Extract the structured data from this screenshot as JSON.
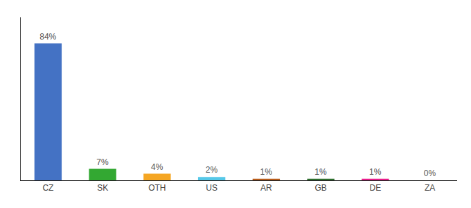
{
  "chart_data": {
    "type": "bar",
    "categories": [
      "CZ",
      "SK",
      "OTH",
      "US",
      "AR",
      "GB",
      "DE",
      "ZA"
    ],
    "values": [
      84,
      7,
      4,
      2,
      1,
      1,
      1,
      0
    ],
    "value_labels": [
      "84%",
      "7%",
      "4%",
      "2%",
      "1%",
      "1%",
      "1%",
      "0%"
    ],
    "data_labels": true,
    "colors": [
      "#4472c4",
      "#33a832",
      "#f5a623",
      "#56c8e8",
      "#b85c1a",
      "#2d6e2d",
      "#e91e8c",
      "#888888"
    ],
    "ylim": [
      0,
      100
    ],
    "grid": false,
    "tick_labels": "x"
  }
}
